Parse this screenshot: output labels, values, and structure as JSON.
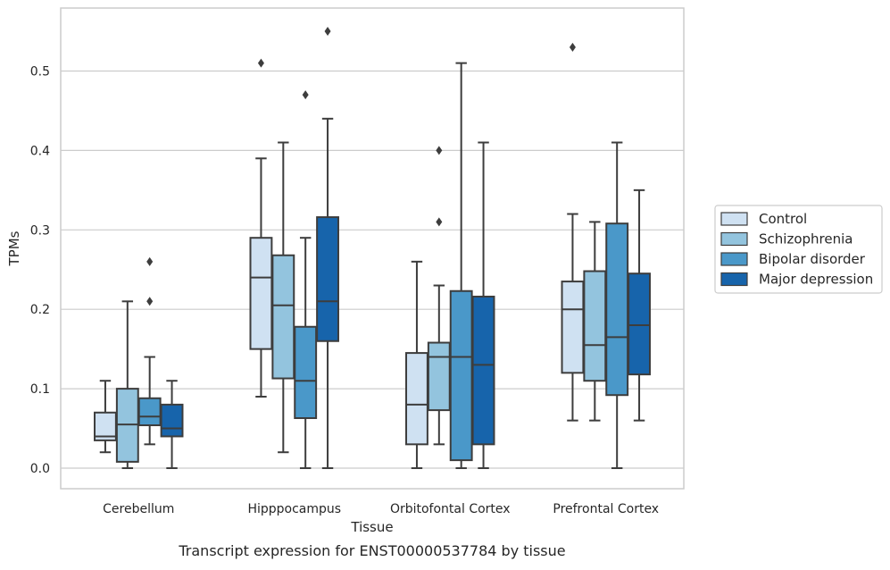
{
  "caption": "Transcript expression for ENST00000537784 by tissue",
  "chart_data": {
    "type": "box",
    "xlabel": "Tissue",
    "ylabel": "TPMs",
    "ylim": [
      -0.026,
      0.58
    ],
    "yticks": [
      0.0,
      0.1,
      0.2,
      0.3,
      0.4,
      0.5
    ],
    "ytick_labels": [
      "0.0",
      "0.1",
      "0.2",
      "0.3",
      "0.4",
      "0.5"
    ],
    "grid": "horizontal",
    "legend_position": "right, outside plot",
    "categories": [
      "Cerebellum",
      "Hipppocampus",
      "Orbitofontal Cortex",
      "Prefrontal Cortex"
    ],
    "series": [
      {
        "name": "Control",
        "color": "#cfe1f2",
        "boxes": [
          {
            "whislo": 0.02,
            "q1": 0.035,
            "med": 0.04,
            "q3": 0.07,
            "whishi": 0.11,
            "fliers": []
          },
          {
            "whislo": 0.09,
            "q1": 0.15,
            "med": 0.24,
            "q3": 0.29,
            "whishi": 0.39,
            "fliers": [
              0.51
            ]
          },
          {
            "whislo": 0.0,
            "q1": 0.03,
            "med": 0.08,
            "q3": 0.145,
            "whishi": 0.26,
            "fliers": []
          },
          {
            "whislo": 0.06,
            "q1": 0.12,
            "med": 0.2,
            "q3": 0.235,
            "whishi": 0.32,
            "fliers": [
              0.53
            ]
          }
        ]
      },
      {
        "name": "Schizophrenia",
        "color": "#93c4de",
        "boxes": [
          {
            "whislo": 0.0,
            "q1": 0.008,
            "med": 0.055,
            "q3": 0.1,
            "whishi": 0.21,
            "fliers": []
          },
          {
            "whislo": 0.02,
            "q1": 0.113,
            "med": 0.205,
            "q3": 0.268,
            "whishi": 0.41,
            "fliers": []
          },
          {
            "whislo": 0.03,
            "q1": 0.073,
            "med": 0.14,
            "q3": 0.158,
            "whishi": 0.23,
            "fliers": [
              0.31,
              0.4
            ]
          },
          {
            "whislo": 0.06,
            "q1": 0.11,
            "med": 0.155,
            "q3": 0.248,
            "whishi": 0.31,
            "fliers": []
          }
        ]
      },
      {
        "name": "Bipolar disorder",
        "color": "#4a98c9",
        "boxes": [
          {
            "whislo": 0.03,
            "q1": 0.054,
            "med": 0.065,
            "q3": 0.088,
            "whishi": 0.14,
            "fliers": [
              0.21,
              0.26
            ]
          },
          {
            "whislo": 0.0,
            "q1": 0.063,
            "med": 0.11,
            "q3": 0.178,
            "whishi": 0.29,
            "fliers": [
              0.47
            ]
          },
          {
            "whislo": 0.0,
            "q1": 0.01,
            "med": 0.14,
            "q3": 0.223,
            "whishi": 0.51,
            "fliers": []
          },
          {
            "whislo": 0.0,
            "q1": 0.092,
            "med": 0.165,
            "q3": 0.308,
            "whishi": 0.41,
            "fliers": []
          }
        ]
      },
      {
        "name": "Major depression",
        "color": "#1764ab",
        "boxes": [
          {
            "whislo": 0.0,
            "q1": 0.04,
            "med": 0.05,
            "q3": 0.08,
            "whishi": 0.11,
            "fliers": []
          },
          {
            "whislo": 0.0,
            "q1": 0.16,
            "med": 0.21,
            "q3": 0.316,
            "whishi": 0.44,
            "fliers": [
              0.55
            ]
          },
          {
            "whislo": 0.0,
            "q1": 0.03,
            "med": 0.13,
            "q3": 0.216,
            "whishi": 0.41,
            "fliers": []
          },
          {
            "whislo": 0.06,
            "q1": 0.118,
            "med": 0.18,
            "q3": 0.245,
            "whishi": 0.35,
            "fliers": []
          }
        ]
      }
    ]
  }
}
